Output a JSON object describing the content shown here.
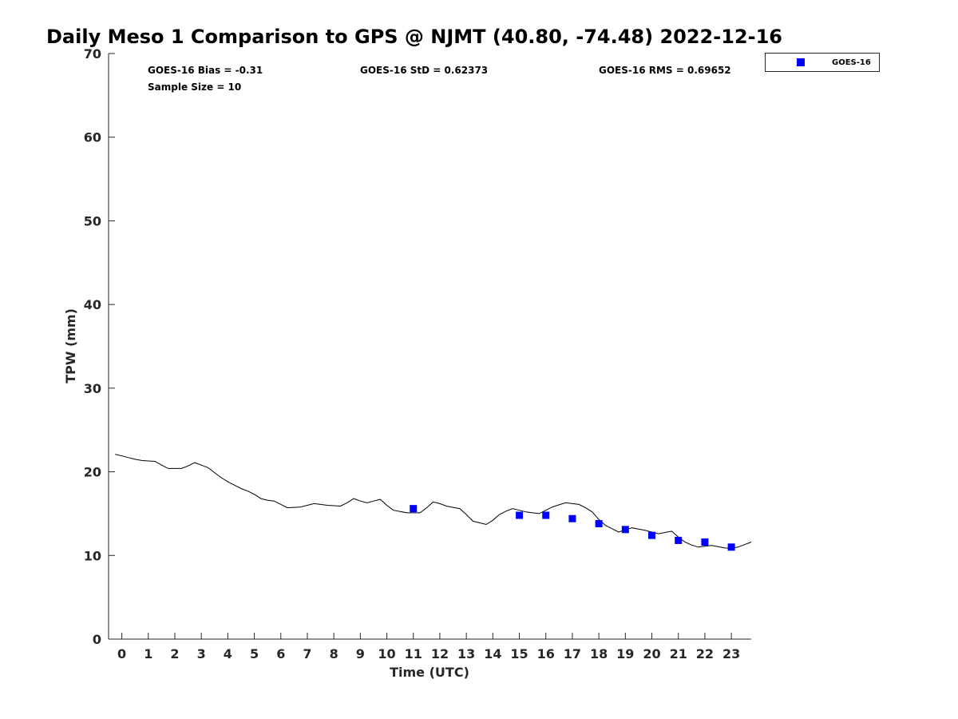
{
  "chart_data": {
    "type": "scatter",
    "title": "Daily Meso 1 Comparison to GPS @ NJMT (40.80, -74.48) 2022-12-16",
    "xlabel": "Time (UTC)",
    "ylabel": "TPW (mm)",
    "xlim": [
      -0.5,
      23.75
    ],
    "ylim": [
      0,
      70
    ],
    "x_ticks": [
      0,
      1,
      2,
      3,
      4,
      5,
      6,
      7,
      8,
      9,
      10,
      11,
      12,
      13,
      14,
      15,
      16,
      17,
      18,
      19,
      20,
      21,
      22,
      23
    ],
    "y_ticks": [
      0,
      10,
      20,
      30,
      40,
      50,
      60,
      70
    ],
    "grid": false,
    "legend_position": "top-right (outside plot)",
    "stats": {
      "bias": "GOES-16 Bias = -0.31",
      "std": "GOES-16 StD = 0.62373",
      "rms": "GOES-16 RMS = 0.69652",
      "sample_size": "Sample Size = 10"
    },
    "series": [
      {
        "name": "GOES-16",
        "type": "scatter",
        "marker": "square",
        "color": "#0000ff",
        "x": [
          11,
          15,
          16,
          17,
          18,
          19,
          20,
          21,
          22,
          23
        ],
        "y": [
          15.6,
          14.8,
          14.8,
          14.4,
          13.8,
          13.1,
          12.4,
          11.8,
          11.6,
          11.0
        ]
      },
      {
        "type": "line",
        "color": "#000000",
        "x": [
          -0.25,
          0.0,
          0.25,
          0.5,
          0.75,
          1.0,
          1.25,
          1.5,
          1.75,
          2.0,
          2.25,
          2.5,
          2.75,
          3.0,
          3.25,
          3.5,
          3.75,
          4.0,
          4.25,
          4.5,
          4.75,
          5.0,
          5.25,
          5.5,
          5.75,
          6.0,
          6.25,
          6.5,
          6.75,
          7.0,
          7.25,
          7.5,
          7.75,
          8.0,
          8.25,
          8.5,
          8.75,
          9.0,
          9.25,
          9.5,
          9.75,
          10.0,
          10.25,
          10.5,
          10.75,
          11.0,
          11.25,
          11.5,
          11.75,
          12.0,
          12.25,
          12.5,
          12.75,
          13.0,
          13.25,
          13.5,
          13.75,
          14.0,
          14.25,
          14.5,
          14.75,
          15.0,
          15.25,
          15.5,
          15.75,
          16.0,
          16.25,
          16.5,
          16.75,
          17.0,
          17.25,
          17.5,
          17.75,
          18.0,
          18.25,
          18.5,
          18.75,
          19.0,
          19.25,
          19.5,
          19.75,
          20.0,
          20.25,
          20.5,
          20.75,
          21.0,
          21.25,
          21.5,
          21.75,
          22.0,
          22.25,
          22.5,
          22.75,
          23.0,
          23.25,
          23.5,
          23.75
        ],
        "y": [
          22.1,
          21.9,
          21.7,
          21.5,
          21.35,
          21.3,
          21.25,
          20.8,
          20.4,
          20.4,
          20.4,
          20.7,
          21.1,
          20.8,
          20.5,
          19.9,
          19.3,
          18.8,
          18.4,
          18.0,
          17.7,
          17.3,
          16.8,
          16.6,
          16.5,
          16.1,
          15.7,
          15.75,
          15.8,
          16.0,
          16.2,
          16.1,
          16.0,
          15.95,
          15.9,
          16.3,
          16.8,
          16.5,
          16.3,
          16.5,
          16.7,
          16.0,
          15.4,
          15.25,
          15.1,
          15.1,
          15.1,
          15.7,
          16.4,
          16.2,
          15.9,
          15.75,
          15.6,
          14.9,
          14.1,
          13.9,
          13.7,
          14.2,
          14.9,
          15.3,
          15.6,
          15.4,
          15.2,
          15.1,
          15.0,
          15.4,
          15.8,
          16.05,
          16.3,
          16.2,
          16.1,
          15.7,
          15.2,
          14.3,
          13.6,
          13.2,
          12.8,
          13.05,
          13.3,
          13.15,
          13.0,
          12.8,
          12.6,
          12.75,
          12.9,
          12.2,
          11.6,
          11.25,
          11.0,
          11.1,
          11.2,
          11.05,
          10.9,
          10.85,
          11.0,
          11.3,
          11.6
        ]
      }
    ]
  },
  "legend": {
    "label": "GOES-16",
    "marker_color": "#0000ff"
  }
}
